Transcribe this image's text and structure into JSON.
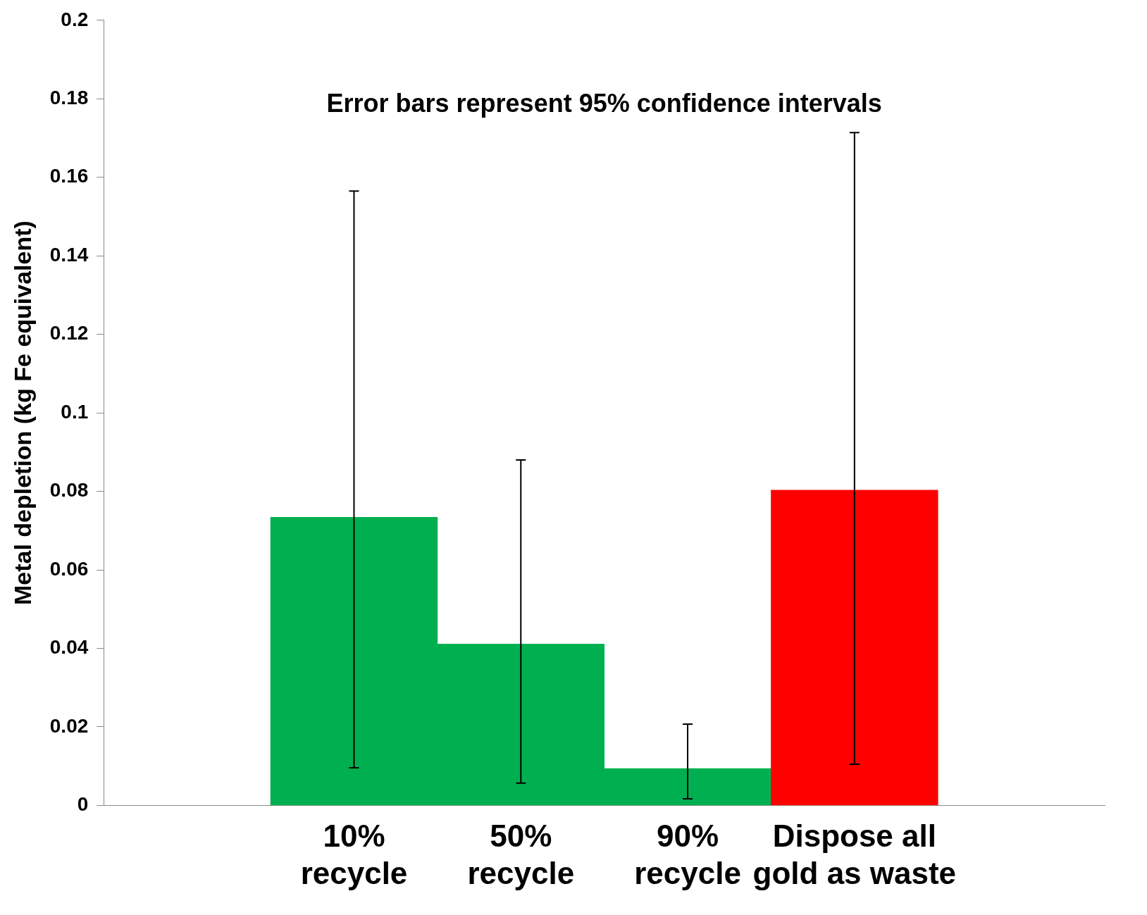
{
  "chart_data": {
    "type": "bar",
    "ylabel": "Metal depletion (kg Fe equivalent)",
    "categories": [
      null,
      "10% recycle",
      "50% recycle",
      "90% recycle",
      "Dispose all gold as waste",
      null
    ],
    "values": [
      null,
      0.0734,
      0.0411,
      0.0094,
      0.0803,
      null
    ],
    "colors": [
      "#00b050",
      "#00b050",
      "#00b050",
      "#00b050",
      "#ff0000",
      "#ff0000"
    ],
    "errors": [
      null,
      [
        0.0096,
        0.1565
      ],
      [
        0.0057,
        0.088
      ],
      [
        0.0017,
        0.0207
      ],
      [
        0.0105,
        0.1714
      ],
      null
    ],
    "ylim": [
      0,
      0.2
    ],
    "yticks": [
      0,
      0.02,
      0.04,
      0.06,
      0.08,
      0.1,
      0.12,
      0.14,
      0.16,
      0.18,
      0.2
    ],
    "grid": false,
    "legend": false,
    "annotations": [
      "Error bars represent 95% confidence intervals"
    ]
  }
}
